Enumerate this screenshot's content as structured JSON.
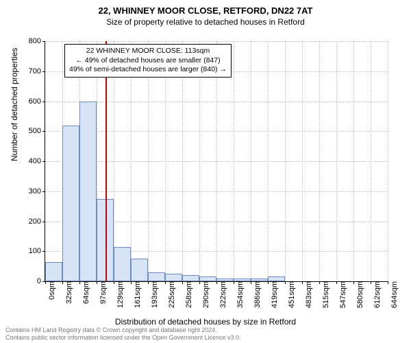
{
  "title": "22, WHINNEY MOOR CLOSE, RETFORD, DN22 7AT",
  "subtitle": "Size of property relative to detached houses in Retford",
  "ylabel": "Number of detached properties",
  "xlabel": "Distribution of detached houses by size in Retford",
  "colors": {
    "bar_fill": "#d6e4f5",
    "bar_border": "#6a8cc2",
    "ref_line": "#cc0000",
    "grid": "#c0c0c0",
    "text": "#000000",
    "footer": "#777777",
    "bg": "#ffffff"
  },
  "y_axis": {
    "min": 0,
    "max": 800,
    "ticks": [
      0,
      100,
      200,
      300,
      400,
      500,
      600,
      700,
      800
    ]
  },
  "x_axis": {
    "ticks": [
      "0sqm",
      "32sqm",
      "64sqm",
      "97sqm",
      "129sqm",
      "161sqm",
      "193sqm",
      "225sqm",
      "258sqm",
      "290sqm",
      "322sqm",
      "354sqm",
      "386sqm",
      "419sqm",
      "451sqm",
      "483sqm",
      "515sqm",
      "547sqm",
      "580sqm",
      "612sqm",
      "644sqm"
    ]
  },
  "bars": [
    65,
    520,
    600,
    275,
    115,
    75,
    30,
    25,
    20,
    15,
    10,
    10,
    10,
    15,
    0,
    0,
    0,
    0,
    0,
    0
  ],
  "reference": {
    "position_pct": 17.5,
    "lines": [
      "22 WHINNEY MOOR CLOSE: 113sqm",
      "← 49% of detached houses are smaller (847)",
      "49% of semi-detached houses are larger (840) →"
    ]
  },
  "footer": {
    "line1": "Contains HM Land Registry data © Crown copyright and database right 2024.",
    "line2": "Contains public sector information licensed under the Open Government Licence v3.0."
  }
}
